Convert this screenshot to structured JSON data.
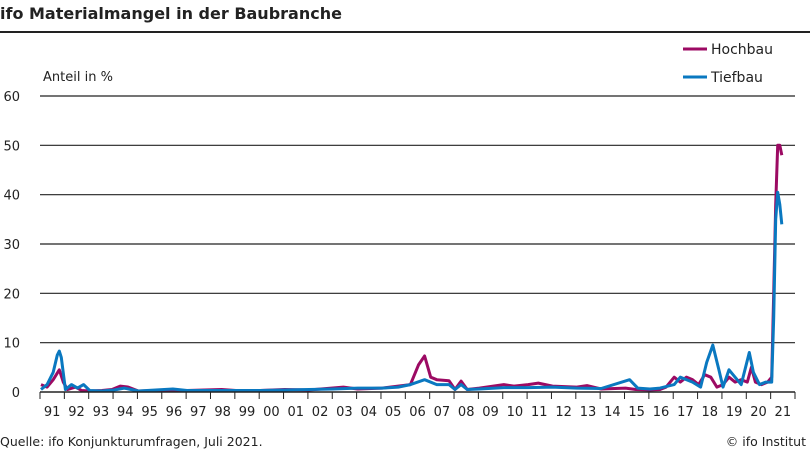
{
  "chart_data": {
    "type": "line",
    "title": "ifo Materialmangel in der Baubranche",
    "ylabel": "Anteil in %",
    "xlabel": "",
    "ylim": [
      0,
      60
    ],
    "xlim": [
      "1991-01",
      "2021-12"
    ],
    "yticks": [
      0,
      10,
      20,
      30,
      40,
      50,
      60
    ],
    "xtick_labels": [
      "91",
      "92",
      "93",
      "94",
      "95",
      "96",
      "97",
      "98",
      "99",
      "00",
      "01",
      "02",
      "03",
      "04",
      "05",
      "06",
      "07",
      "08",
      "09",
      "10",
      "11",
      "12",
      "13",
      "14",
      "15",
      "16",
      "17",
      "18",
      "19",
      "20",
      "21"
    ],
    "grid": "horizontal",
    "legend_position": "top-right",
    "series": [
      {
        "name": "Hochbau",
        "color": "#9c0a63",
        "points": [
          [
            "1991-01",
            1.5
          ],
          [
            "1991-04",
            1.0
          ],
          [
            "1991-07",
            2.5
          ],
          [
            "1991-10",
            4.5
          ],
          [
            "1991-12",
            2.0
          ],
          [
            "1992-02",
            0.5
          ],
          [
            "1992-06",
            1.0
          ],
          [
            "1992-09",
            0.3
          ],
          [
            "1993-01",
            0.2
          ],
          [
            "1993-07",
            0.3
          ],
          [
            "1993-12",
            0.5
          ],
          [
            "1994-04",
            1.2
          ],
          [
            "1994-08",
            1.0
          ],
          [
            "1995-01",
            0.2
          ],
          [
            "1996-01",
            0.3
          ],
          [
            "1997-01",
            0.3
          ],
          [
            "1998-06",
            0.5
          ],
          [
            "1999-01",
            0.3
          ],
          [
            "2000-01",
            0.3
          ],
          [
            "2001-01",
            0.5
          ],
          [
            "2002-01",
            0.4
          ],
          [
            "2003-06",
            1.0
          ],
          [
            "2004-01",
            0.6
          ],
          [
            "2005-01",
            0.8
          ],
          [
            "2005-09",
            1.2
          ],
          [
            "2006-03",
            1.5
          ],
          [
            "2006-07",
            5.5
          ],
          [
            "2006-10",
            7.3
          ],
          [
            "2007-01",
            3.0
          ],
          [
            "2007-04",
            2.5
          ],
          [
            "2007-10",
            2.3
          ],
          [
            "2008-01",
            0.5
          ],
          [
            "2008-04",
            2.2
          ],
          [
            "2008-07",
            0.5
          ],
          [
            "2009-01",
            0.8
          ],
          [
            "2010-01",
            1.5
          ],
          [
            "2010-06",
            1.2
          ],
          [
            "2011-01",
            1.5
          ],
          [
            "2011-06",
            1.8
          ],
          [
            "2012-01",
            1.2
          ],
          [
            "2013-01",
            1.0
          ],
          [
            "2013-06",
            1.3
          ],
          [
            "2014-01",
            0.6
          ],
          [
            "2015-01",
            0.8
          ],
          [
            "2015-06",
            0.5
          ],
          [
            "2016-01",
            0.4
          ],
          [
            "2016-06",
            0.5
          ],
          [
            "2016-09",
            1.0
          ],
          [
            "2017-01",
            3.0
          ],
          [
            "2017-04",
            2.0
          ],
          [
            "2017-07",
            3.0
          ],
          [
            "2017-10",
            2.5
          ],
          [
            "2018-01",
            1.5
          ],
          [
            "2018-04",
            3.5
          ],
          [
            "2018-07",
            3.0
          ],
          [
            "2018-10",
            1.0
          ],
          [
            "2019-01",
            1.5
          ],
          [
            "2019-04",
            3.0
          ],
          [
            "2019-07",
            2.0
          ],
          [
            "2019-10",
            2.5
          ],
          [
            "2020-01",
            2.0
          ],
          [
            "2020-03",
            5.0
          ],
          [
            "2020-05",
            2.0
          ],
          [
            "2020-08",
            1.5
          ],
          [
            "2020-11",
            2.0
          ],
          [
            "2021-01",
            3.0
          ],
          [
            "2021-02",
            20
          ],
          [
            "2021-03",
            38
          ],
          [
            "2021-04",
            50
          ],
          [
            "2021-05",
            50
          ],
          [
            "2021-06",
            48
          ]
        ]
      },
      {
        "name": "Tiefbau",
        "color": "#0a78c0",
        "points": [
          [
            "1991-01",
            0.5
          ],
          [
            "1991-04",
            1.5
          ],
          [
            "1991-07",
            4.0
          ],
          [
            "1991-09",
            7.5
          ],
          [
            "1991-10",
            8.3
          ],
          [
            "1991-11",
            7.0
          ],
          [
            "1992-01",
            0.5
          ],
          [
            "1992-04",
            1.5
          ],
          [
            "1992-07",
            0.8
          ],
          [
            "1992-10",
            1.5
          ],
          [
            "1993-01",
            0.3
          ],
          [
            "1993-07",
            0.2
          ],
          [
            "1994-01",
            0.4
          ],
          [
            "1994-06",
            0.8
          ],
          [
            "1995-01",
            0.2
          ],
          [
            "1996-06",
            0.6
          ],
          [
            "1997-01",
            0.3
          ],
          [
            "1998-01",
            0.3
          ],
          [
            "1999-01",
            0.3
          ],
          [
            "2000-01",
            0.3
          ],
          [
            "2001-01",
            0.4
          ],
          [
            "2002-01",
            0.5
          ],
          [
            "2003-01",
            0.6
          ],
          [
            "2004-01",
            0.8
          ],
          [
            "2005-01",
            0.8
          ],
          [
            "2005-09",
            1.0
          ],
          [
            "2006-03",
            1.5
          ],
          [
            "2006-10",
            2.5
          ],
          [
            "2007-04",
            1.5
          ],
          [
            "2007-10",
            1.5
          ],
          [
            "2008-01",
            0.5
          ],
          [
            "2008-04",
            1.5
          ],
          [
            "2008-07",
            0.5
          ],
          [
            "2009-01",
            0.6
          ],
          [
            "2010-01",
            0.9
          ],
          [
            "2011-01",
            0.9
          ],
          [
            "2012-01",
            1.0
          ],
          [
            "2013-01",
            0.8
          ],
          [
            "2014-01",
            0.7
          ],
          [
            "2015-03",
            2.5
          ],
          [
            "2015-07",
            0.8
          ],
          [
            "2016-01",
            0.6
          ],
          [
            "2016-06",
            0.8
          ],
          [
            "2017-01",
            1.5
          ],
          [
            "2017-04",
            3.0
          ],
          [
            "2017-10",
            2.0
          ],
          [
            "2018-02",
            1.0
          ],
          [
            "2018-05",
            6.0
          ],
          [
            "2018-08",
            9.5
          ],
          [
            "2018-11",
            4.5
          ],
          [
            "2019-01",
            1.0
          ],
          [
            "2019-04",
            4.5
          ],
          [
            "2019-07",
            3.0
          ],
          [
            "2019-10",
            1.5
          ],
          [
            "2020-02",
            8.0
          ],
          [
            "2020-04",
            4.0
          ],
          [
            "2020-07",
            1.5
          ],
          [
            "2020-10",
            2.0
          ],
          [
            "2021-01",
            2.0
          ],
          [
            "2021-02",
            15
          ],
          [
            "2021-03",
            35
          ],
          [
            "2021-04",
            40.5
          ],
          [
            "2021-05",
            38
          ],
          [
            "2021-06",
            34
          ]
        ]
      }
    ]
  },
  "footer": {
    "source": "Quelle: ifo Konjunkturumfragen, Juli 2021.",
    "copyright": "© ifo Institut"
  }
}
